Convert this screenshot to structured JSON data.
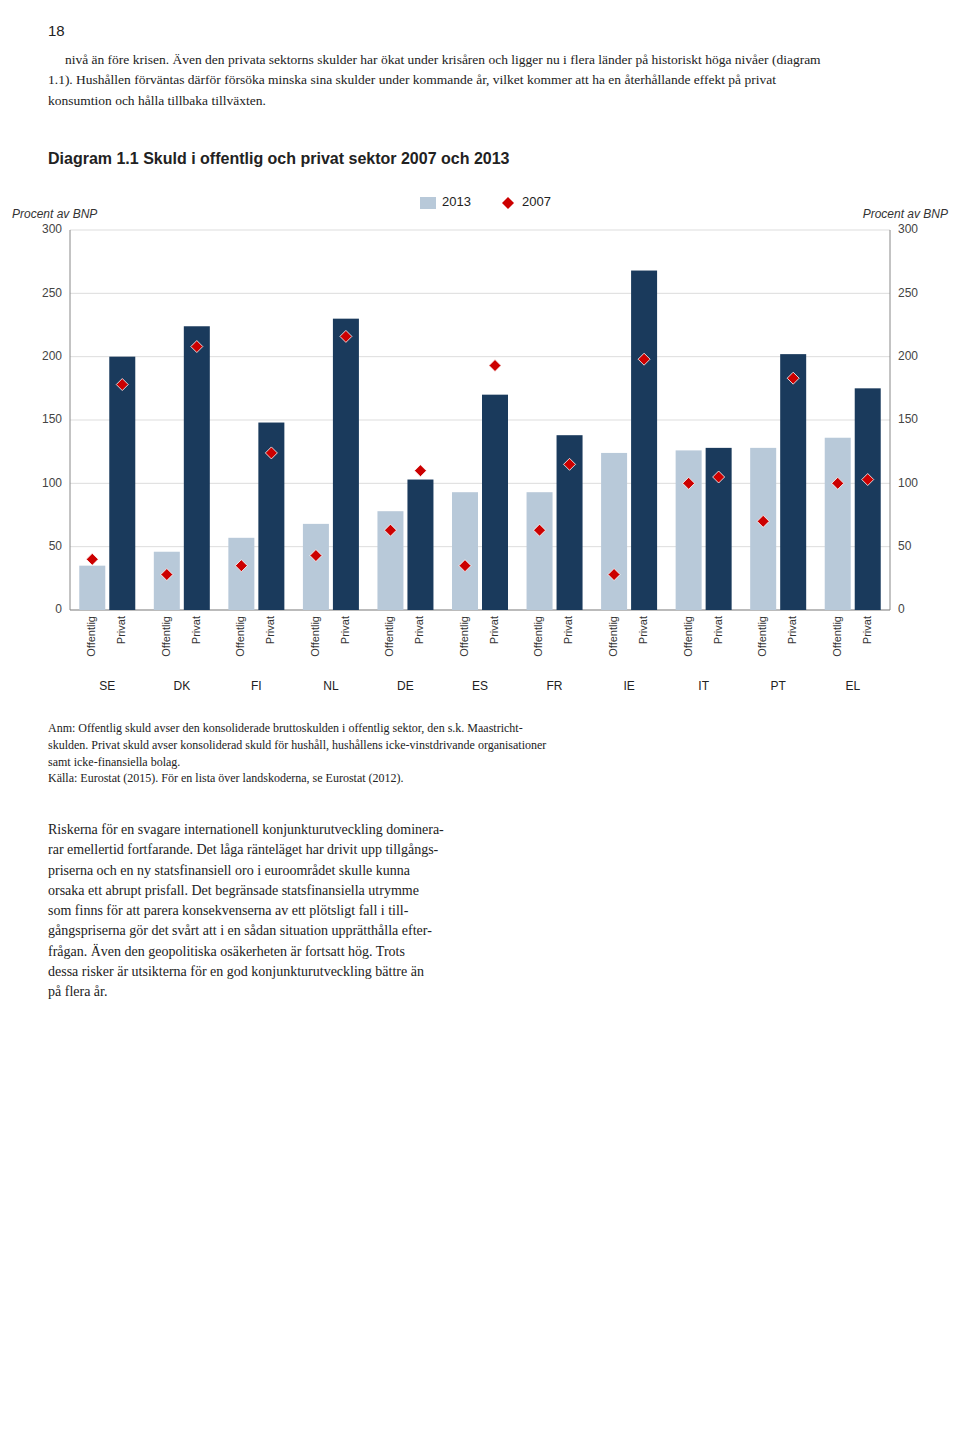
{
  "chart_data": {
    "type": "bar",
    "title": "Diagram 1.1 Skuld i offentlig och privat sektor 2007 och 2013",
    "ylabel": "Procent av BNP",
    "categories": [
      "SE",
      "DK",
      "FI",
      "NL",
      "DE",
      "ES",
      "FR",
      "IE",
      "IT",
      "PT",
      "EL"
    ],
    "series": [
      {
        "name": "Offentlig",
        "type": "bar",
        "color": "#B8C9D9",
        "values": [
          35,
          46,
          57,
          68,
          78,
          93,
          93,
          124,
          126,
          128,
          136
        ]
      },
      {
        "name": "Privat",
        "type": "bar",
        "color": "#1A3A5C",
        "values": [
          200,
          224,
          148,
          230,
          103,
          170,
          138,
          268,
          128,
          202,
          175
        ]
      },
      {
        "name": "Offentlig",
        "type": "scatter",
        "marker": "diamond",
        "color": "#CC0000",
        "values": [
          40,
          28,
          35,
          43,
          63,
          35,
          63,
          28,
          100,
          70,
          100
        ]
      },
      {
        "name": "Privat",
        "type": "scatter",
        "marker": "diamond",
        "color": "#CC0000",
        "values": [
          178,
          208,
          124,
          216,
          110,
          193,
          115,
          198,
          105,
          183,
          103
        ]
      }
    ],
    "legend_entries": [
      {
        "name": "2013",
        "type": "bar",
        "color": "#B8C9D9"
      },
      {
        "name": "2007",
        "type": "scatter",
        "marker": "diamond",
        "color": "#CC0000"
      }
    ],
    "ylim": [
      0,
      300
    ],
    "yticks": [
      0,
      50,
      100,
      150,
      200,
      250,
      300
    ],
    "grid": true
  },
  "page": {
    "page_number": "18",
    "intro_text": "     nivå än före krisen. Även den privata sektorns skulder har ökat under krisåren och ligger nu i flera länder på historiskt höga nivåer (diagram\n1.1). Hushållen förväntas därför försöka minska sina skulder under kommande år, vilket kommer att ha en återhållande effekt på privat\nkonsumtion och hålla tillbaka tillväxten.",
    "footnotes": [
      "Anm: Offentlig skuld avser den konsoliderade bruttoskulden i offentlig sektor, den s.k. Maastricht-",
      "skulden. Privat skuld avser konsoliderad skuld för hushåll, hushållens icke-vinstdrivande organisationer",
      "samt icke-finansiella bolag.",
      "Källa: Eurostat (2015). För en lista över landskoderna, se Eurostat (2012)."
    ],
    "body_lines": [
      "Riskerna för en svagare internationell konjunkturutveckling dominera-",
      "rar emellertid fortfarande. Det låga ränteläget har drivit upp tillgångs-",
      "priserna och en ny statsfinansiell oro i euroområdet skulle kunna",
      "orsaka ett abrupt prisfall. Det begränsade statsfinansiella utrymme",
      "som finns för att parera konsekvenserna av ett plötsligt fall i till-",
      "gångspriserna gör det svårt att i en sådan situation upprätthålla efter-",
      "frågan. Även den geopolitiska osäkerheten är fortsatt hög. Trots",
      "dessa risker är utsikterna för en god konjunkturutveckling bättre än",
      "på flera år."
    ]
  }
}
